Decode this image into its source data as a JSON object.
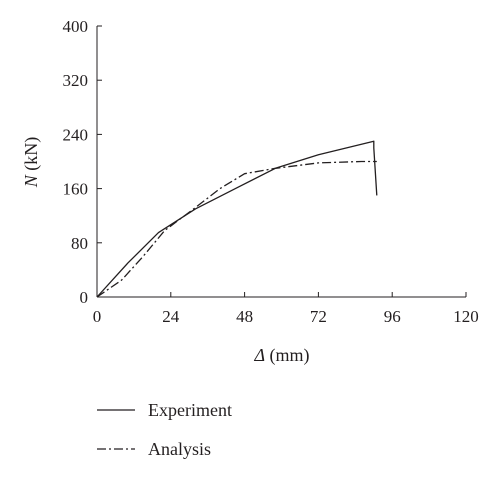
{
  "chart_data": {
    "type": "line",
    "title": "",
    "xlabel_var": "Δ",
    "xlabel_unit": " (mm)",
    "ylabel_var": "N",
    "ylabel_unit": " (kN)",
    "xlim": [
      0,
      120
    ],
    "ylim": [
      0,
      400
    ],
    "xticks": [
      0,
      24,
      48,
      72,
      96,
      120
    ],
    "yticks": [
      0,
      80,
      160,
      240,
      320,
      400
    ],
    "grid": false,
    "legend_position": "bottom",
    "series": [
      {
        "name": "Experiment",
        "style": "solid",
        "color": "#231f20",
        "x": [
          0,
          10,
          20,
          32,
          45,
          58,
          72,
          90,
          90,
          91
        ],
        "y": [
          0,
          50,
          95,
          130,
          160,
          190,
          210,
          230,
          220,
          150
        ]
      },
      {
        "name": "Analysis",
        "style": "dashdot",
        "color": "#231f20",
        "x": [
          0,
          8,
          15,
          22,
          32,
          40,
          48,
          58,
          72,
          86,
          91
        ],
        "y": [
          0,
          25,
          60,
          98,
          132,
          160,
          182,
          190,
          198,
          200,
          200
        ]
      }
    ]
  }
}
